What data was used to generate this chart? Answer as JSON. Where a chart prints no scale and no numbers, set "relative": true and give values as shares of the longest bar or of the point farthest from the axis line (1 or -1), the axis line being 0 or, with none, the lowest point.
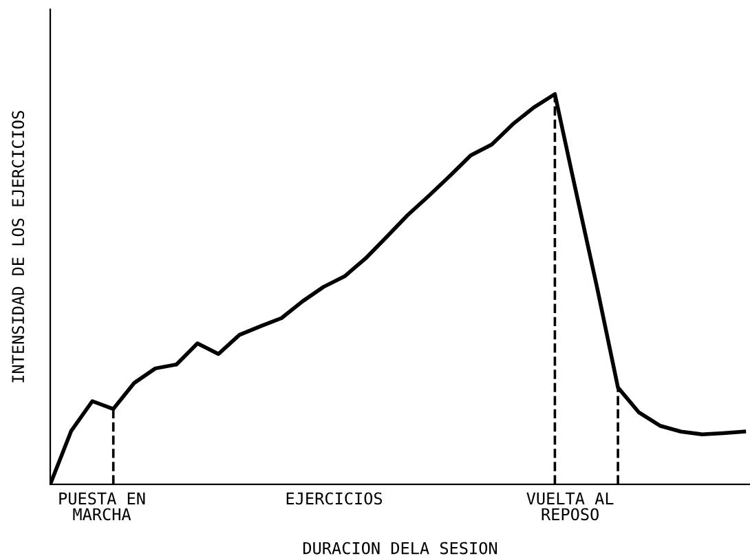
{
  "chart_data": {
    "type": "line",
    "relative": true,
    "xlabel": "DURACION DELA SESION",
    "ylabel": "INTENSIDAD DE LOS EJERCICIOS",
    "categories": [
      null,
      null,
      null,
      null,
      null,
      null,
      null,
      null,
      null,
      null,
      null,
      null,
      null,
      null,
      null,
      null,
      null,
      null,
      null,
      null,
      null,
      null,
      null,
      null,
      null,
      null,
      null,
      null,
      null,
      null,
      null,
      null,
      null,
      null
    ],
    "series": [
      {
        "color": "#000000",
        "values": [
          0,
          0.137,
          0.213,
          0.193,
          0.26,
          0.297,
          0.307,
          0.361,
          0.334,
          0.383,
          0.405,
          0.426,
          0.469,
          0.506,
          0.533,
          0.579,
          0.634,
          0.69,
          0.739,
          0.79,
          0.843,
          0.871,
          0.923,
          0.966,
          1,
          0.751,
          0.506,
          0.248,
          0.184,
          0.15,
          0.135,
          0.128,
          0.131,
          0.135
        ]
      }
    ],
    "annotations": [
      "PUESTA EN\nMARCHA",
      "EJERCICIOS",
      "VUELTA AL\nREPOSO"
    ],
    "legend": false,
    "marker": "none",
    "line_style": "solid"
  }
}
